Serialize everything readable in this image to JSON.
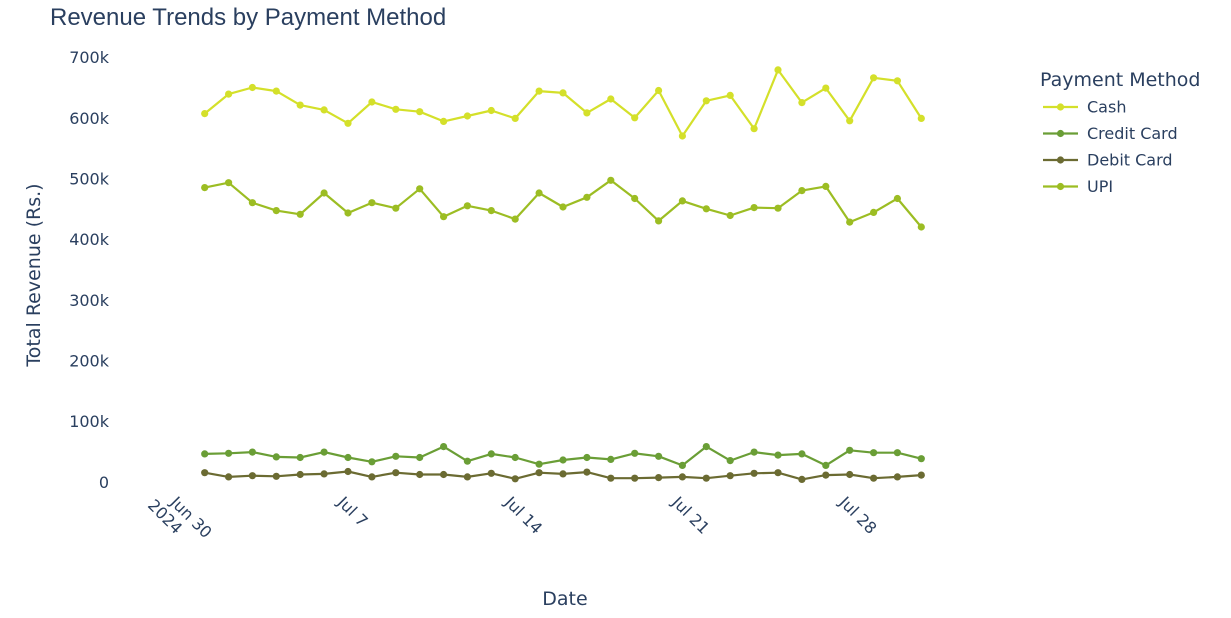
{
  "chart_data": {
    "type": "line",
    "title": "Revenue Trends by Payment Method",
    "xlabel": "Date",
    "ylabel": "Total Revenue (Rs.)",
    "legend_title": "Payment Method",
    "legend_position": "top-right",
    "grid": false,
    "ylim": [
      -30000,
      720000
    ],
    "xlim": [
      "2024-06-28",
      "2024-08-03"
    ],
    "y_ticks": [
      {
        "value": 0,
        "label": "0"
      },
      {
        "value": 100000,
        "label": "100k"
      },
      {
        "value": 200000,
        "label": "200k"
      },
      {
        "value": 300000,
        "label": "300k"
      },
      {
        "value": 400000,
        "label": "400k"
      },
      {
        "value": 500000,
        "label": "500k"
      },
      {
        "value": 600000,
        "label": "600k"
      },
      {
        "value": 700000,
        "label": "700k"
      }
    ],
    "x_ticks": [
      {
        "value": "2024-06-30",
        "label": "Jun 30",
        "sublabel": "2024"
      },
      {
        "value": "2024-07-07",
        "label": "Jul 7"
      },
      {
        "value": "2024-07-14",
        "label": "Jul 14"
      },
      {
        "value": "2024-07-21",
        "label": "Jul 21"
      },
      {
        "value": "2024-07-28",
        "label": "Jul 28"
      }
    ],
    "x": [
      "2024-07-01",
      "2024-07-02",
      "2024-07-03",
      "2024-07-04",
      "2024-07-05",
      "2024-07-06",
      "2024-07-07",
      "2024-07-08",
      "2024-07-09",
      "2024-07-10",
      "2024-07-11",
      "2024-07-12",
      "2024-07-13",
      "2024-07-14",
      "2024-07-15",
      "2024-07-16",
      "2024-07-17",
      "2024-07-18",
      "2024-07-19",
      "2024-07-20",
      "2024-07-21",
      "2024-07-22",
      "2024-07-23",
      "2024-07-24",
      "2024-07-25",
      "2024-07-26",
      "2024-07-27",
      "2024-07-28",
      "2024-07-29",
      "2024-07-30",
      "2024-07-31"
    ],
    "series": [
      {
        "name": "Cash",
        "color": "#d4e02a",
        "values": [
          607000,
          639000,
          650000,
          644000,
          621000,
          613000,
          591000,
          626000,
          614000,
          610000,
          594000,
          603000,
          612000,
          599000,
          644000,
          641000,
          608000,
          631000,
          600000,
          645000,
          570000,
          628000,
          637000,
          582000,
          679000,
          625000,
          649000,
          595000,
          666000,
          661000,
          599000
        ]
      },
      {
        "name": "Credit Card",
        "color": "#6a9e36",
        "values": [
          46000,
          47000,
          49000,
          41000,
          40000,
          49000,
          40000,
          33000,
          42000,
          40000,
          58000,
          34000,
          46000,
          40000,
          29000,
          36000,
          40000,
          37000,
          47000,
          42000,
          27000,
          58000,
          35000,
          49000,
          44000,
          46000,
          27000,
          52000,
          48000,
          48000,
          38000
        ]
      },
      {
        "name": "Debit Card",
        "color": "#6b6b32",
        "values": [
          15000,
          8000,
          10000,
          9000,
          12000,
          13000,
          17000,
          8000,
          15000,
          12000,
          12000,
          8000,
          14000,
          5000,
          15000,
          13000,
          16000,
          6000,
          6000,
          7000,
          8000,
          6000,
          10000,
          14000,
          15000,
          4000,
          11000,
          12000,
          6000,
          8000,
          11000
        ]
      },
      {
        "name": "UPI",
        "color": "#9cbd23",
        "values": [
          485000,
          493000,
          460000,
          447000,
          441000,
          476000,
          443000,
          460000,
          451000,
          483000,
          437000,
          455000,
          447000,
          433000,
          476000,
          453000,
          469000,
          497000,
          467000,
          430000,
          463000,
          450000,
          439000,
          452000,
          451000,
          480000,
          487000,
          428000,
          444000,
          467000,
          420000
        ]
      }
    ]
  }
}
